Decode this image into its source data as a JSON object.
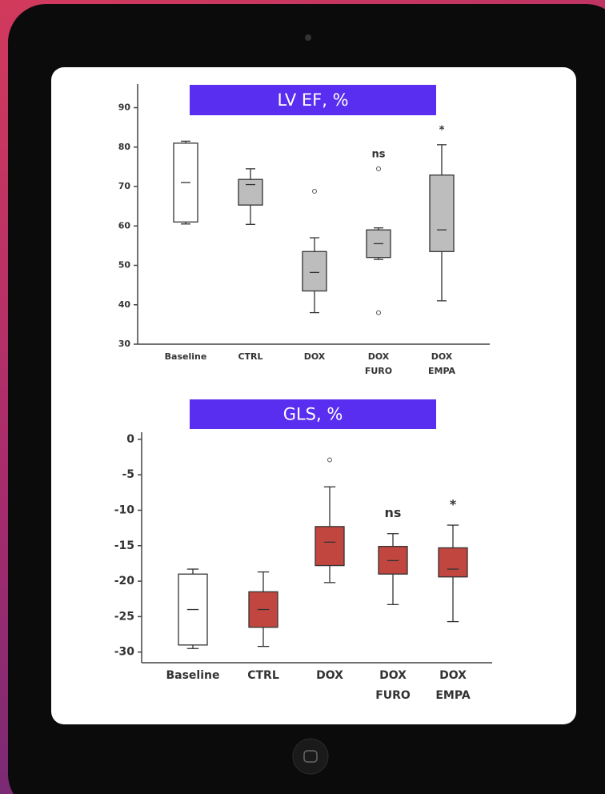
{
  "chart_data": [
    {
      "type": "box",
      "title": "LV EF, %",
      "categories": [
        "Baseline",
        "CTRL",
        "DOX",
        "DOX FURO",
        "DOX EMPA"
      ],
      "whisker_low": [
        60.5,
        60.4,
        38,
        51.5,
        41
      ],
      "q1": [
        61,
        65.3,
        43.5,
        52,
        53.5
      ],
      "median": [
        71,
        70.5,
        48.2,
        55.5,
        59
      ],
      "q3": [
        81,
        71.8,
        53.5,
        59,
        72.9
      ],
      "whisker_high": [
        81.5,
        74.5,
        57,
        59.5,
        80.6
      ],
      "outliers": [
        [],
        [],
        [
          68.8
        ],
        [
          74.5,
          38
        ],
        []
      ],
      "annotations": [
        null,
        null,
        null,
        "ns",
        "*"
      ],
      "box_colors": [
        "#ffffff",
        "#bdbdbd",
        "#bdbdbd",
        "#bdbdbd",
        "#bdbdbd"
      ],
      "ylim": [
        30,
        96
      ],
      "yticks": [
        30,
        40,
        50,
        60,
        70,
        80,
        90
      ]
    },
    {
      "type": "box",
      "title": "GLS, %",
      "categories": [
        "Baseline",
        "CTRL",
        "DOX",
        "DOX FURO",
        "DOX EMPA"
      ],
      "whisker_low": [
        -29.5,
        -29.2,
        -20.2,
        -23.3,
        -25.7
      ],
      "q1": [
        -29,
        -26.5,
        -17.8,
        -19,
        -19.4
      ],
      "median": [
        -24,
        -24,
        -14.5,
        -17.1,
        -18.3
      ],
      "q3": [
        -19,
        -21.5,
        -12.3,
        -15.1,
        -15.3
      ],
      "whisker_high": [
        -18.3,
        -18.7,
        -6.7,
        -13.3,
        -12.1
      ],
      "outliers": [
        [],
        [],
        [
          -2.9
        ],
        [],
        []
      ],
      "annotations": [
        null,
        null,
        null,
        "ns",
        "*"
      ],
      "box_colors": [
        "#ffffff",
        "#c0463f",
        "#c0463f",
        "#c0463f",
        "#c0463f"
      ],
      "ylim": [
        -31.5,
        1
      ],
      "yticks": [
        0,
        -5,
        -10,
        -15,
        -20,
        -25,
        -30
      ]
    }
  ]
}
